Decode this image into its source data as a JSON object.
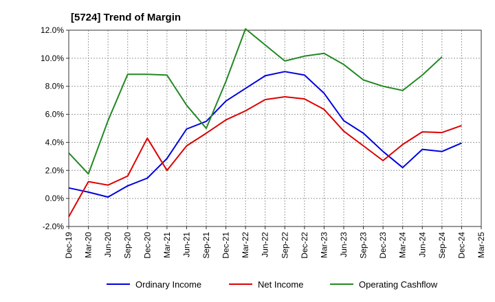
{
  "chart_data": {
    "type": "line",
    "title": "[5724]  Trend of Margin",
    "x": [
      "Dec-19",
      "Mar-20",
      "Jun-20",
      "Sep-20",
      "Dec-20",
      "Mar-21",
      "Jun-21",
      "Sep-21",
      "Dec-21",
      "Mar-22",
      "Jun-22",
      "Sep-22",
      "Dec-22",
      "Mar-23",
      "Jun-23",
      "Sep-23",
      "Dec-23",
      "Mar-24",
      "Jun-24",
      "Sep-24",
      "Dec-24",
      "Mar-25"
    ],
    "ylim": [
      -2.0,
      12.0
    ],
    "yticks": [
      -2.0,
      0.0,
      2.0,
      4.0,
      6.0,
      8.0,
      10.0,
      12.0
    ],
    "ytick_labels": [
      "-2.0%",
      "0.0%",
      "2.0%",
      "4.0%",
      "6.0%",
      "8.0%",
      "10.0%",
      "12.0%"
    ],
    "grid": true,
    "legend_position": "bottom",
    "series": [
      {
        "name": "Ordinary Income",
        "color": "#0000dd",
        "values": [
          0.75,
          0.45,
          0.1,
          0.9,
          1.45,
          2.85,
          4.95,
          5.5,
          6.95,
          7.85,
          8.75,
          9.05,
          8.8,
          7.5,
          5.55,
          4.65,
          3.35,
          2.2,
          3.5,
          3.35,
          3.95,
          null
        ]
      },
      {
        "name": "Net Income",
        "color": "#dd0000",
        "values": [
          -1.3,
          1.2,
          0.95,
          1.6,
          4.3,
          2.0,
          3.75,
          4.65,
          5.6,
          6.25,
          7.05,
          7.25,
          7.1,
          6.35,
          4.8,
          3.75,
          2.7,
          3.85,
          4.75,
          4.7,
          5.2,
          null
        ]
      },
      {
        "name": "Operating Cashflow",
        "color": "#228822",
        "values": [
          3.25,
          1.75,
          5.55,
          8.85,
          8.85,
          8.8,
          6.65,
          5.0,
          8.35,
          12.1,
          10.95,
          9.8,
          10.15,
          10.35,
          9.55,
          8.45,
          8.0,
          7.7,
          8.8,
          10.1,
          null,
          null
        ]
      }
    ]
  }
}
